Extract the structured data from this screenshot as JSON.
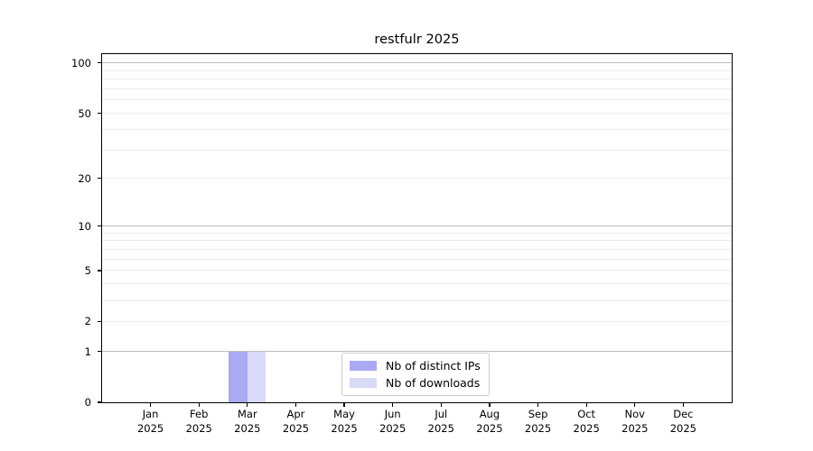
{
  "chart_data": {
    "type": "bar",
    "title": "restfulr 2025",
    "y_scale": "log1p",
    "ylim": [
      0,
      113
    ],
    "xlabel": "",
    "ylabel": "",
    "categories": [
      "Jan",
      "Feb",
      "Mar",
      "Apr",
      "May",
      "Jun",
      "Jul",
      "Aug",
      "Sep",
      "Oct",
      "Nov",
      "Dec"
    ],
    "x_year": "2025",
    "series": [
      {
        "name": "Nb of distinct IPs",
        "color": "#a9a9f4",
        "values": [
          0,
          0,
          1,
          0,
          0,
          0,
          0,
          0,
          0,
          0,
          0,
          0
        ]
      },
      {
        "name": "Nb of downloads",
        "color": "#d9d9f8",
        "values": [
          0,
          0,
          1,
          0,
          0,
          0,
          0,
          0,
          0,
          0,
          0,
          0
        ]
      }
    ],
    "y_ticks": [
      {
        "value": 100,
        "label": "100"
      },
      {
        "value": 50,
        "label": "50"
      },
      {
        "value": 20,
        "label": "20"
      },
      {
        "value": 10,
        "label": "10"
      },
      {
        "value": 5,
        "label": "5"
      },
      {
        "value": 2,
        "label": "2"
      },
      {
        "value": 1,
        "label": "1"
      },
      {
        "value": 0,
        "label": "0"
      }
    ],
    "grid_minor": [
      2,
      3,
      4,
      5,
      6,
      7,
      8,
      9,
      20,
      30,
      40,
      50,
      60,
      70,
      80,
      90
    ],
    "grid_major": [
      1,
      10,
      100
    ],
    "legend": {
      "position": "lower-center"
    },
    "colors": {
      "grid_major": "#bdbdbd",
      "grid_minor": "#ececec",
      "axis": "#000000",
      "background": "#ffffff"
    }
  }
}
